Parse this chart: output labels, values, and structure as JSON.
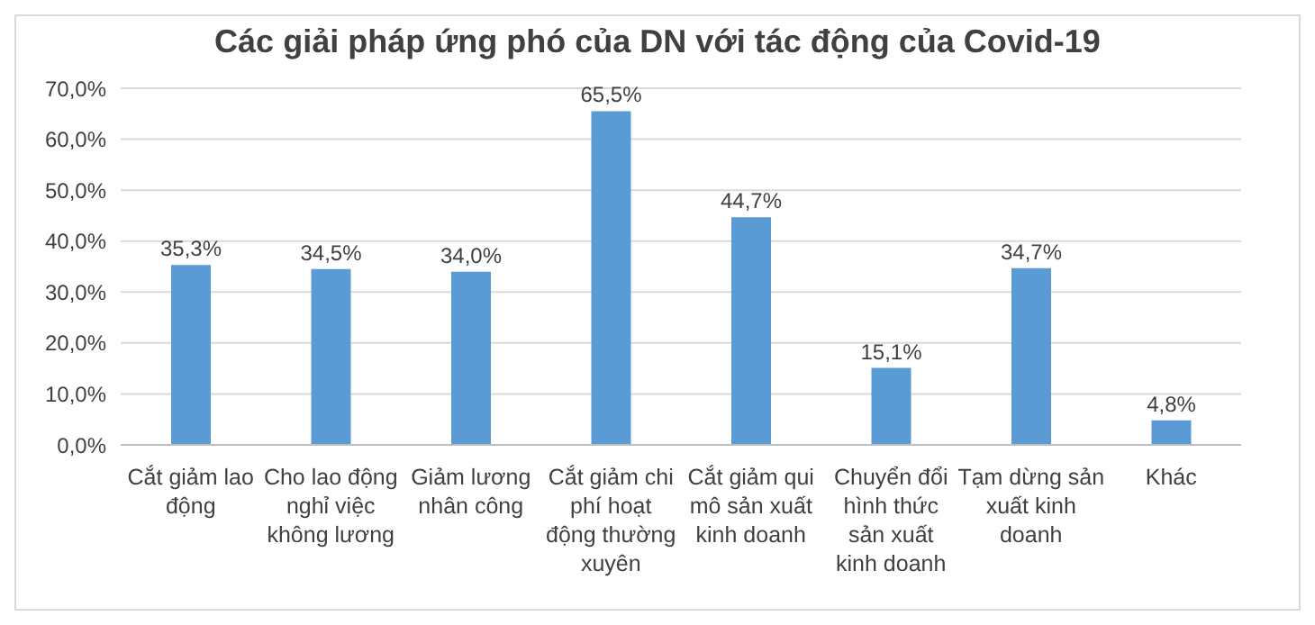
{
  "chart_data": {
    "type": "bar",
    "title": "Các giải pháp ứng phó của DN với tác động của Covid-19",
    "categories": [
      "Cắt giảm lao động",
      "Cho lao động nghỉ việc không lương",
      "Giảm lương nhân công",
      "Cắt giảm chi phí hoạt động thường xuyên",
      "Cắt giảm qui mô sản xuất kinh doanh",
      "Chuyển đổi hình thức sản xuất kinh doanh",
      "Tạm dừng sản xuất kinh doanh",
      "Khác"
    ],
    "values": [
      35.3,
      34.5,
      34.0,
      65.5,
      44.7,
      15.1,
      34.7,
      4.8
    ],
    "value_labels": [
      "35,3%",
      "34,5%",
      "34,0%",
      "65,5%",
      "44,7%",
      "15,1%",
      "34,7%",
      "4,8%"
    ],
    "color": "#5b9bd5",
    "ylim": [
      0,
      70
    ],
    "yticks": [
      {
        "value": 0,
        "label": "0,0%"
      },
      {
        "value": 10,
        "label": "10,0%"
      },
      {
        "value": 20,
        "label": "20,0%"
      },
      {
        "value": 30,
        "label": "30,0%"
      },
      {
        "value": 40,
        "label": "40,0%"
      },
      {
        "value": 50,
        "label": "50,0%"
      },
      {
        "value": 60,
        "label": "60,0%"
      },
      {
        "value": 70,
        "label": "70,0%"
      }
    ],
    "grid": "y"
  }
}
